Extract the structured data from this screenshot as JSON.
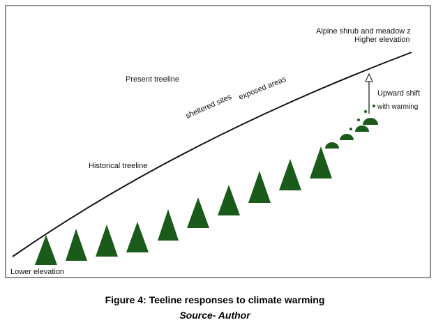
{
  "labels": {
    "alpine": "Alpine shrub and meadow z",
    "higher": "Higher elevation",
    "present": "Present treeline",
    "sheltered": "sheltered sites",
    "exposed": "exposed areas",
    "upward": "Upward shift",
    "warming": "with warming",
    "historical": "Historical treeline",
    "lower": "Lower elevation"
  },
  "caption": {
    "title": "Figure 4:  Teeline responses to climate warming",
    "source": "Source- Author"
  }
}
